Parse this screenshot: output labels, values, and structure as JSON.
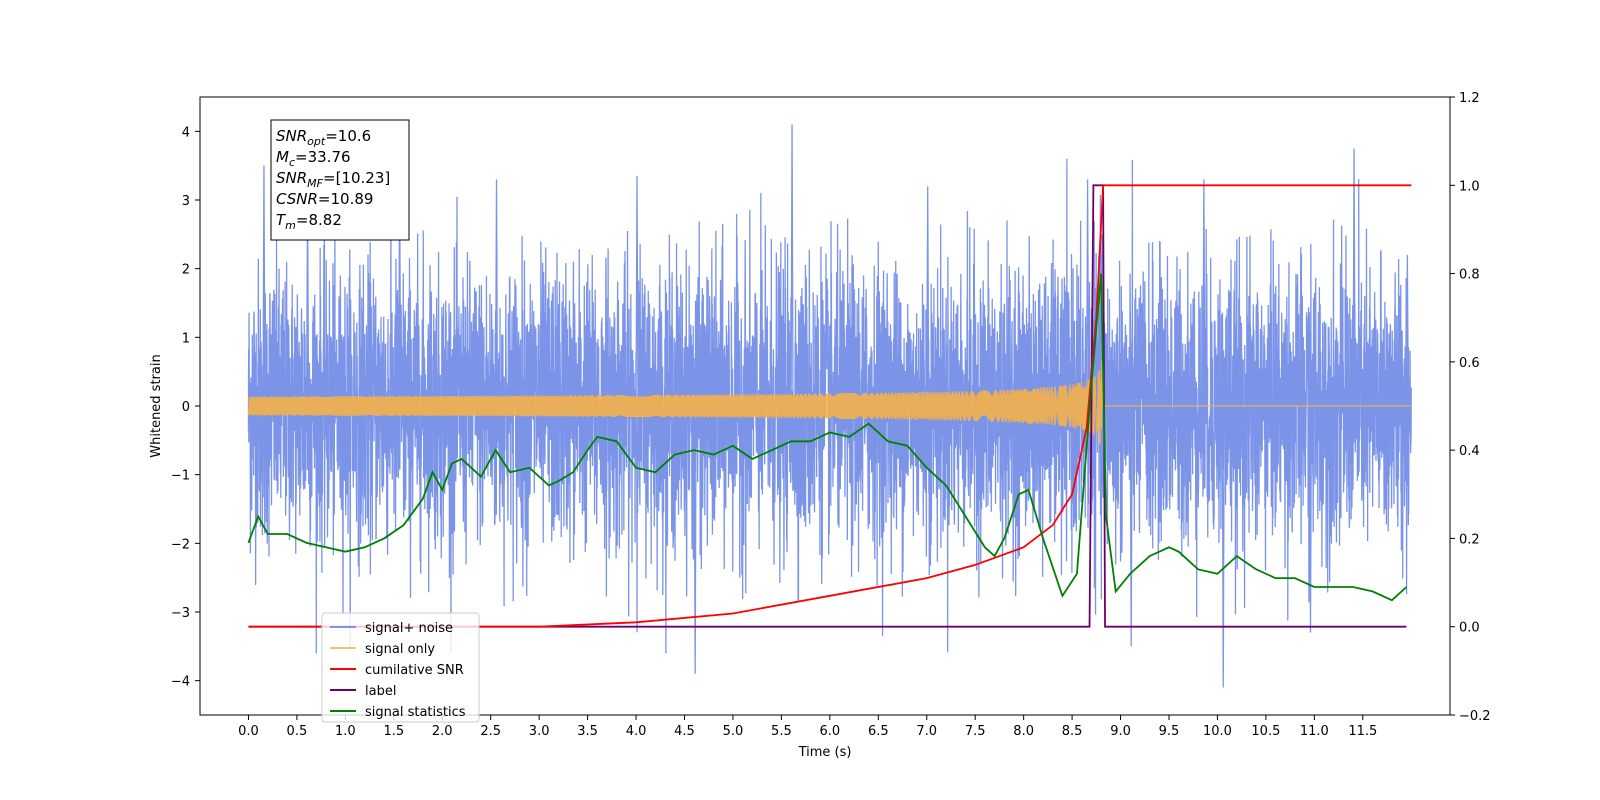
{
  "chart_data": {
    "type": "line",
    "xlabel": "Time (s)",
    "ylabel_left": "Whitened strain",
    "ylabel_right": "",
    "xlim": [
      -0.5,
      12.4
    ],
    "ylim_left": [
      -4.5,
      4.5
    ],
    "ylim_right": [
      -0.2,
      1.2
    ],
    "x_ticks": [
      "0.0",
      "0.5",
      "1.0",
      "1.5",
      "2.0",
      "2.5",
      "3.0",
      "3.5",
      "4.0",
      "4.5",
      "5.0",
      "5.5",
      "6.0",
      "6.5",
      "7.0",
      "7.5",
      "8.0",
      "8.5",
      "9.0",
      "9.5",
      "10.0",
      "10.5",
      "11.0",
      "11.5"
    ],
    "y_ticks_left": [
      "4",
      "3",
      "2",
      "1",
      "0",
      "−1",
      "−2",
      "−3",
      "−4"
    ],
    "y_ticks_right": [
      "1.2",
      "1.0",
      "0.8",
      "0.6",
      "0.4",
      "0.2",
      "0.0",
      "−0.2"
    ],
    "legend_position": "lower-left",
    "series": [
      {
        "name": "signal+ noise",
        "axis": "left",
        "color": "#7b94e8",
        "description_range": [
          -3.9,
          4.1
        ],
        "peaks_x": [
          0.15,
          0.6,
          1.55,
          2.55,
          4.0,
          4.6,
          5.6,
          7.0,
          8.65,
          9.1,
          9.85,
          10.05,
          10.95,
          11.4,
          11.95
        ],
        "peaks_y": [
          3.5,
          3.1,
          3.4,
          3.3,
          3.35,
          -3.9,
          4.1,
          3.2,
          3.3,
          -3.5,
          3.3,
          -4.1,
          -3.3,
          3.75,
          2.2
        ]
      },
      {
        "name": "signal only",
        "axis": "left",
        "color": "#f5b04a",
        "chirp_start": 0.0,
        "chirp_merger": 8.82,
        "chirp_peak_amplitude": 0.9
      },
      {
        "name": "cumilative SNR",
        "axis": "right",
        "color": "#ff0000",
        "x": [
          0.0,
          3.0,
          4.0,
          5.0,
          6.0,
          7.0,
          7.5,
          8.0,
          8.3,
          8.5,
          8.65,
          8.75,
          8.82,
          12.0
        ],
        "y": [
          0.0,
          0.0,
          0.01,
          0.03,
          0.07,
          0.11,
          0.14,
          0.18,
          0.23,
          0.3,
          0.45,
          0.7,
          1.0,
          1.0
        ]
      },
      {
        "name": "label",
        "axis": "right",
        "color": "#6b006b",
        "x": [
          0.0,
          8.68,
          8.72,
          8.82,
          8.84,
          11.95
        ],
        "y": [
          0.0,
          0.0,
          1.0,
          1.0,
          0.0,
          0.0
        ]
      },
      {
        "name": "signal statistics",
        "axis": "right",
        "color": "#008000",
        "x": [
          0.0,
          0.1,
          0.2,
          0.4,
          0.6,
          0.8,
          1.0,
          1.2,
          1.4,
          1.6,
          1.8,
          1.9,
          2.0,
          2.1,
          2.2,
          2.4,
          2.55,
          2.7,
          2.9,
          3.1,
          3.2,
          3.35,
          3.5,
          3.6,
          3.8,
          4.0,
          4.2,
          4.4,
          4.6,
          4.8,
          5.0,
          5.2,
          5.4,
          5.6,
          5.8,
          6.0,
          6.2,
          6.4,
          6.6,
          6.8,
          7.0,
          7.2,
          7.4,
          7.6,
          7.7,
          7.8,
          7.95,
          8.05,
          8.2,
          8.4,
          8.55,
          8.7,
          8.8,
          8.85,
          8.95,
          9.1,
          9.3,
          9.5,
          9.6,
          9.8,
          10.0,
          10.2,
          10.4,
          10.6,
          10.8,
          11.0,
          11.2,
          11.4,
          11.6,
          11.8,
          11.95
        ],
        "y": [
          0.19,
          0.25,
          0.21,
          0.21,
          0.19,
          0.18,
          0.17,
          0.18,
          0.2,
          0.23,
          0.29,
          0.35,
          0.31,
          0.37,
          0.38,
          0.34,
          0.4,
          0.35,
          0.36,
          0.32,
          0.33,
          0.35,
          0.4,
          0.43,
          0.42,
          0.36,
          0.35,
          0.39,
          0.4,
          0.39,
          0.41,
          0.38,
          0.4,
          0.42,
          0.42,
          0.44,
          0.43,
          0.46,
          0.42,
          0.41,
          0.36,
          0.32,
          0.25,
          0.18,
          0.16,
          0.2,
          0.3,
          0.31,
          0.2,
          0.07,
          0.12,
          0.55,
          0.8,
          0.25,
          0.08,
          0.12,
          0.16,
          0.18,
          0.17,
          0.13,
          0.12,
          0.16,
          0.13,
          0.11,
          0.11,
          0.09,
          0.09,
          0.09,
          0.08,
          0.06,
          0.09
        ]
      }
    ],
    "annotation": {
      "lines": [
        {
          "main": "SNR",
          "sub": "opt",
          "rest": "=10.6"
        },
        {
          "main": "M",
          "sub": "c",
          "rest": "=33.76"
        },
        {
          "main": "SNR",
          "sub": "MF",
          "rest": "=[10.23]"
        },
        {
          "main": "CSNR",
          "sub": "",
          "rest": "=10.89"
        },
        {
          "main": "T",
          "sub": "m",
          "rest": "=8.82"
        }
      ]
    },
    "legend": [
      {
        "label": "signal+ noise",
        "color": "#7b94e8"
      },
      {
        "label": "signal only",
        "color": "#f5c070"
      },
      {
        "label": "cumilative SNR",
        "color": "#ff0000"
      },
      {
        "label": "label",
        "color": "#6b006b"
      },
      {
        "label": "signal statistics",
        "color": "#008000"
      }
    ]
  }
}
